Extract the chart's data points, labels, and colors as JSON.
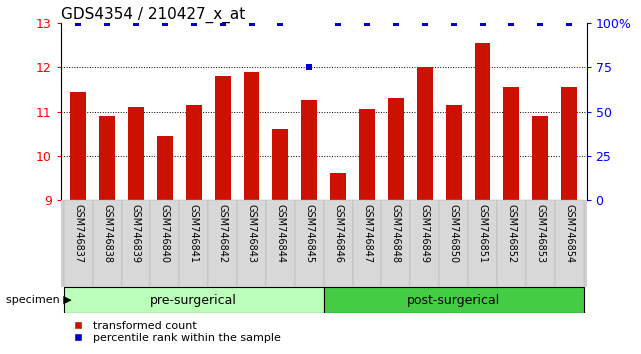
{
  "title": "GDS4354 / 210427_x_at",
  "samples": [
    "GSM746837",
    "GSM746838",
    "GSM746839",
    "GSM746840",
    "GSM746841",
    "GSM746842",
    "GSM746843",
    "GSM746844",
    "GSM746845",
    "GSM746846",
    "GSM746847",
    "GSM746848",
    "GSM746849",
    "GSM746850",
    "GSM746851",
    "GSM746852",
    "GSM746853",
    "GSM746854"
  ],
  "bar_values": [
    11.45,
    10.9,
    11.1,
    10.45,
    11.15,
    11.8,
    11.9,
    10.6,
    11.25,
    9.6,
    11.05,
    11.3,
    12.0,
    11.15,
    12.55,
    11.55,
    10.9,
    11.55
  ],
  "percentile_values": [
    100,
    100,
    100,
    100,
    100,
    100,
    100,
    100,
    75,
    100,
    100,
    100,
    100,
    100,
    100,
    100,
    100,
    100
  ],
  "bar_color": "#cc1100",
  "percentile_color": "#0000cc",
  "ylim_left": [
    9,
    13
  ],
  "ylim_right": [
    0,
    100
  ],
  "yticks_left": [
    9,
    10,
    11,
    12,
    13
  ],
  "yticks_right": [
    0,
    25,
    50,
    75,
    100
  ],
  "group1_label": "pre-surgerical",
  "group2_label": "post-surgerical",
  "n_pre": 9,
  "n_post": 9,
  "specimen_label": "specimen",
  "legend_items": [
    "transformed count",
    "percentile rank within the sample"
  ],
  "bar_color_legend": "#cc1100",
  "percentile_color_legend": "#0000cc",
  "background_plot": "#ffffff",
  "background_xtick": "#d0d0d0",
  "background_group1": "#bbffbb",
  "background_group2": "#44cc44",
  "title_fontsize": 11,
  "tick_fontsize": 7,
  "bar_width": 0.55
}
